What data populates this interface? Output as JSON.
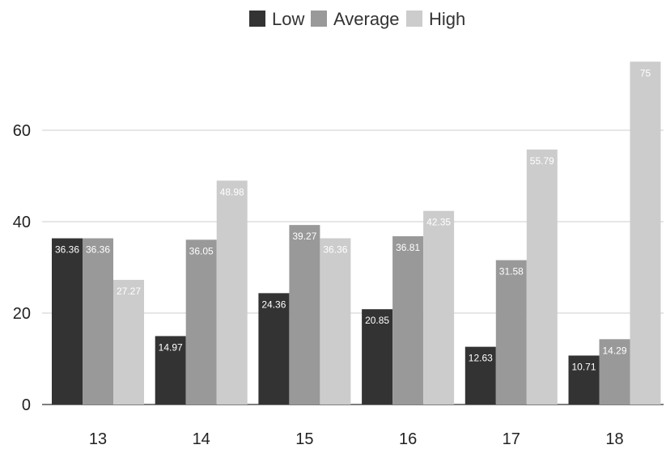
{
  "chart_data": {
    "type": "bar",
    "categories": [
      "13",
      "14",
      "15",
      "16",
      "17",
      "18"
    ],
    "series": [
      {
        "name": "Low",
        "color": "#333333",
        "label_color": "#ffffff",
        "values": [
          36.36,
          14.97,
          24.36,
          20.85,
          12.63,
          10.71
        ]
      },
      {
        "name": "Average",
        "color": "#999999",
        "label_color": "#ffffff",
        "values": [
          36.36,
          36.05,
          39.27,
          36.81,
          31.58,
          14.29
        ]
      },
      {
        "name": "High",
        "color": "#cccccc",
        "label_color": "#ffffff",
        "values": [
          27.27,
          48.98,
          36.36,
          42.35,
          55.79,
          75
        ]
      }
    ],
    "title": "",
    "xlabel": "",
    "ylabel": "",
    "ylim": [
      0,
      75
    ],
    "yticks": [
      0,
      20,
      40,
      60
    ],
    "grid": true,
    "legend_position": "top-center",
    "data_labels": true
  }
}
